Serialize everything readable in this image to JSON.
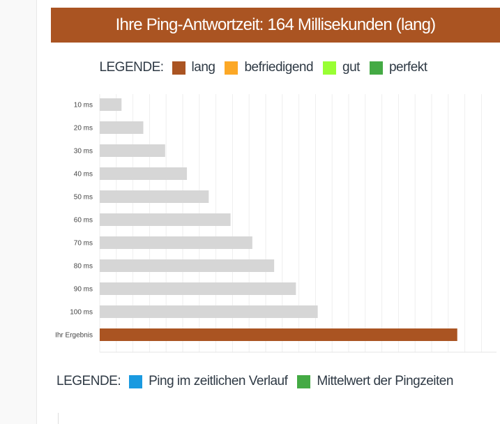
{
  "header": {
    "title": "Ihre Ping-Antwortzeit: 164 Millisekunden (lang)"
  },
  "legend_top": {
    "label": "LEGENDE:",
    "items": [
      {
        "label": "lang",
        "color": "#aa5422"
      },
      {
        "label": "befriedigend",
        "color": "#fca826"
      },
      {
        "label": "gut",
        "color": "#99ff33"
      },
      {
        "label": "perfekt",
        "color": "#44aa44"
      }
    ]
  },
  "legend_bottom": {
    "label": "LEGENDE:",
    "items": [
      {
        "label": "Ping im zeitlichen Verlauf",
        "color": "#1a9ae0"
      },
      {
        "label": "Mittelwert der Pingzeiten",
        "color": "#44aa44"
      }
    ]
  },
  "chart_data": {
    "type": "bar",
    "orientation": "horizontal",
    "categories": [
      "10 ms",
      "20 ms",
      "30 ms",
      "40 ms",
      "50 ms",
      "60 ms",
      "70 ms",
      "80 ms",
      "90 ms",
      "100 ms",
      "Ihr Ergebnis"
    ],
    "values": [
      10,
      20,
      30,
      40,
      50,
      60,
      70,
      80,
      90,
      100,
      164
    ],
    "colors": [
      "#d6d6d6",
      "#d6d6d6",
      "#d6d6d6",
      "#d6d6d6",
      "#d6d6d6",
      "#d6d6d6",
      "#d6d6d6",
      "#d6d6d6",
      "#d6d6d6",
      "#d6d6d6",
      "#aa5422"
    ],
    "xlim": [
      0,
      182
    ],
    "grid": true,
    "unit": "ms"
  }
}
